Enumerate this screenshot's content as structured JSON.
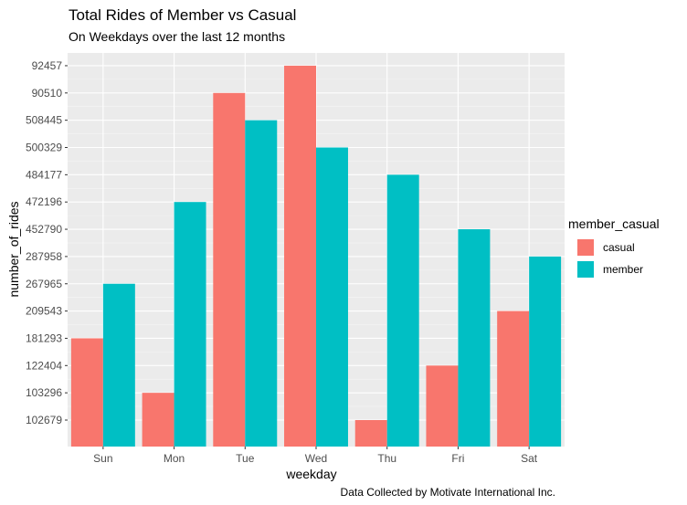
{
  "chart_data": {
    "type": "bar",
    "title": "Total Rides of Member vs Casual",
    "subtitle": "On Weekdays over the last 12 months",
    "caption": "Data Collected by Motivate International Inc.",
    "xlabel": "weekday",
    "ylabel": "number_of_rides",
    "categories": [
      "Sun",
      "Mon",
      "Tue",
      "Wed",
      "Thu",
      "Fri",
      "Sat"
    ],
    "y_tick_labels": [
      "102679",
      "103296",
      "122404",
      "181293",
      "209543",
      "267965",
      "287958",
      "452790",
      "472196",
      "484177",
      "500329",
      "508445",
      "90510",
      "92457"
    ],
    "y_scale": "discrete",
    "legend_title": "member_casual",
    "legend_position": "right",
    "grid": true,
    "series": [
      {
        "name": "casual",
        "color": "#F8766D",
        "values": [
          "181293",
          "103296",
          "90510",
          "92457",
          "102679",
          "122404",
          "209543"
        ]
      },
      {
        "name": "member",
        "color": "#00BFC4",
        "values": [
          "267965",
          "472196",
          "508445",
          "500329",
          "484177",
          "452790",
          "287958"
        ]
      }
    ]
  }
}
